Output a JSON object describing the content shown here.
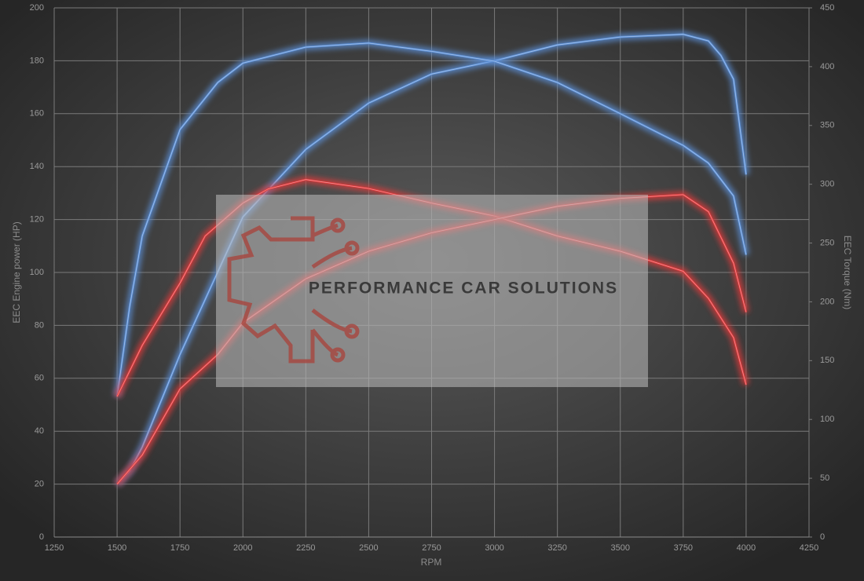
{
  "chart_data": {
    "type": "line",
    "xlabel": "RPM",
    "ylabel": "EEC Engine power (HP)",
    "y2label": "EEC Torque (Nm)",
    "watermark": "PERFORMANCE CAR SOLUTIONS",
    "xlim": [
      1250,
      4250
    ],
    "xticks": [
      1250,
      1500,
      1750,
      2000,
      2250,
      2500,
      2750,
      3000,
      3250,
      3500,
      3750,
      4000,
      4250
    ],
    "ylim": [
      0,
      200
    ],
    "yticks": [
      0,
      20,
      40,
      60,
      80,
      100,
      120,
      140,
      160,
      180,
      200
    ],
    "y2lim": [
      0,
      450
    ],
    "y2ticks": [
      0,
      50,
      100,
      150,
      200,
      250,
      300,
      350,
      400,
      450
    ],
    "grid": true,
    "series": [
      {
        "color": "#5b8fd6",
        "axis": "y",
        "x": [
          1500,
          1550,
          1600,
          1750,
          2000,
          2250,
          2500,
          2750,
          3000,
          3250,
          3500,
          3750,
          3850,
          3900,
          3950,
          4000
        ],
        "values": [
          20,
          25,
          34,
          69,
          121,
          146.5,
          164,
          175,
          180,
          186,
          189,
          190,
          187.5,
          182,
          173,
          137
        ]
      },
      {
        "color": "#5b8fd6",
        "axis": "y2",
        "x": [
          1500,
          1550,
          1600,
          1750,
          1900,
          2000,
          2250,
          2500,
          2750,
          3000,
          3250,
          3500,
          3750,
          3850,
          3950,
          4000
        ],
        "values": [
          119.5,
          196,
          256,
          346.5,
          386.5,
          403,
          416.6,
          420,
          413,
          404.6,
          386.5,
          360,
          333,
          318,
          290,
          240
        ]
      },
      {
        "color": "#e0393b",
        "axis": "y2",
        "x": [
          1500,
          1600,
          1750,
          1850,
          2000,
          2100,
          2250,
          2500,
          2750,
          3000,
          3250,
          3500,
          3750,
          3850,
          3950,
          4000
        ],
        "values": [
          119.5,
          163,
          216,
          256,
          284,
          296,
          304,
          296.4,
          284,
          273,
          256,
          243,
          226,
          203,
          169.6,
          129.5
        ]
      },
      {
        "color": "#e0393b",
        "axis": "y",
        "x": [
          1500,
          1600,
          1750,
          1900,
          2000,
          2250,
          2500,
          2750,
          3000,
          3250,
          3500,
          3750,
          3850,
          3950,
          4000
        ],
        "values": [
          20,
          31,
          56,
          69,
          81,
          97.6,
          108,
          115,
          120,
          125,
          128,
          129.4,
          123,
          103.5,
          85
        ]
      }
    ]
  }
}
